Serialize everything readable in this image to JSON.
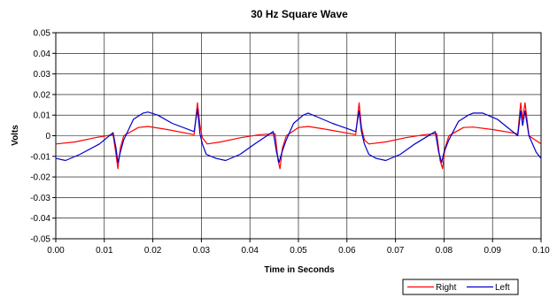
{
  "chart_data": {
    "type": "line",
    "title": "30 Hz Square Wave",
    "xlabel": "Time in Seconds",
    "ylabel": "Volts",
    "xlim": [
      0,
      0.1
    ],
    "ylim": [
      -0.05,
      0.05
    ],
    "x_ticks": [
      "0.00",
      "0.01",
      "0.02",
      "0.03",
      "0.04",
      "0.05",
      "0.06",
      "0.07",
      "0.08",
      "0.09",
      "0.10"
    ],
    "y_ticks": [
      "0.05",
      "0.04",
      "0.03",
      "0.02",
      "0.01",
      "0",
      "-0.01",
      "-0.02",
      "-0.03",
      "-0.04",
      "-0.05"
    ],
    "grid": true,
    "legend_position": "bottom-right",
    "series": [
      {
        "name": "Right",
        "color": "#ff0000",
        "x": [
          0.0,
          0.004,
          0.008,
          0.0118,
          0.0124,
          0.0128,
          0.0133,
          0.014,
          0.017,
          0.019,
          0.023,
          0.0285,
          0.0292,
          0.0297,
          0.0302,
          0.0312,
          0.034,
          0.038,
          0.042,
          0.0452,
          0.0458,
          0.0462,
          0.0467,
          0.0475,
          0.05,
          0.052,
          0.056,
          0.0618,
          0.0625,
          0.063,
          0.0636,
          0.0645,
          0.068,
          0.072,
          0.076,
          0.0785,
          0.0792,
          0.0797,
          0.0802,
          0.081,
          0.084,
          0.086,
          0.09,
          0.0952,
          0.0958,
          0.0962,
          0.0967,
          0.0975,
          0.1
        ],
        "y": [
          -0.004,
          -0.003,
          -0.001,
          0.0005,
          -0.009,
          -0.016,
          -0.006,
          0.0,
          0.004,
          0.0045,
          0.003,
          0.0005,
          0.016,
          0.005,
          -0.001,
          -0.004,
          -0.003,
          -0.001,
          0.0005,
          0.001,
          -0.012,
          -0.016,
          -0.006,
          0.0,
          0.004,
          0.0045,
          0.003,
          0.0005,
          0.016,
          0.004,
          -0.002,
          -0.004,
          -0.003,
          -0.001,
          0.0005,
          0.001,
          -0.012,
          -0.016,
          -0.006,
          0.0,
          0.004,
          0.0042,
          0.003,
          0.001,
          0.016,
          0.008,
          0.016,
          0.0,
          -0.004
        ]
      },
      {
        "name": "Left",
        "color": "#0000cc",
        "x": [
          0.0,
          0.002,
          0.005,
          0.009,
          0.0118,
          0.0124,
          0.0128,
          0.0133,
          0.014,
          0.016,
          0.018,
          0.019,
          0.021,
          0.024,
          0.0285,
          0.0292,
          0.0297,
          0.0302,
          0.031,
          0.033,
          0.035,
          0.038,
          0.041,
          0.0448,
          0.0455,
          0.046,
          0.0466,
          0.0475,
          0.049,
          0.051,
          0.052,
          0.054,
          0.057,
          0.0618,
          0.0625,
          0.063,
          0.0636,
          0.0645,
          0.066,
          0.068,
          0.071,
          0.074,
          0.0782,
          0.0789,
          0.0795,
          0.08,
          0.081,
          0.083,
          0.085,
          0.086,
          0.088,
          0.091,
          0.0952,
          0.0958,
          0.0962,
          0.0967,
          0.0975,
          0.099,
          0.1
        ],
        "y": [
          -0.011,
          -0.012,
          -0.009,
          -0.004,
          0.0015,
          -0.006,
          -0.013,
          -0.008,
          -0.002,
          0.008,
          0.011,
          0.0115,
          0.01,
          0.006,
          0.002,
          0.013,
          0.001,
          -0.004,
          -0.009,
          -0.011,
          -0.012,
          -0.009,
          -0.004,
          0.002,
          -0.008,
          -0.013,
          -0.008,
          -0.002,
          0.006,
          0.01,
          0.011,
          0.009,
          0.006,
          0.002,
          0.012,
          0.002,
          -0.004,
          -0.009,
          -0.011,
          -0.012,
          -0.009,
          -0.004,
          0.002,
          -0.008,
          -0.013,
          -0.008,
          -0.002,
          0.007,
          0.01,
          0.011,
          0.011,
          0.008,
          0.0,
          0.012,
          0.005,
          0.012,
          0.0,
          -0.008,
          -0.011
        ]
      }
    ]
  }
}
